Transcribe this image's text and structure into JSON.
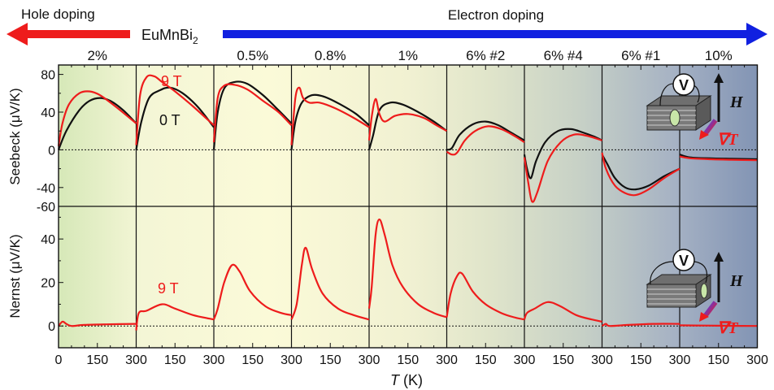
{
  "header": {
    "hole_label": "Hole doping",
    "electron_label": "Electron doping",
    "compound_base": "EuMnBi",
    "compound_sub": "2",
    "hole_color": "#ee1c1c",
    "electron_color": "#1020e0"
  },
  "chart_data": {
    "type": "line",
    "xlabel_italic": "T",
    "xlabel_unit": " (K)",
    "xlim": [
      0,
      300
    ],
    "x_ticks": [
      "0",
      "150",
      "300",
      "150",
      "300",
      "150",
      "300",
      "150",
      "300",
      "150",
      "300",
      "150",
      "300",
      "150",
      "300",
      "150",
      "300",
      "150",
      "300"
    ],
    "top_panel": {
      "ylabel": "Seebeck (μV/K)",
      "ylim": [
        -60,
        90
      ],
      "y_ticks": [
        "80",
        "40",
        "0",
        "-40",
        "-60"
      ]
    },
    "bottom_panel": {
      "ylabel": "Nernst (μV/K)",
      "ylim": [
        -10,
        55
      ],
      "y_ticks": [
        "40",
        "20",
        "0"
      ]
    },
    "annotations": {
      "nine_tesla_top": "9 T",
      "zero_tesla": "0 T",
      "nine_tesla_bottom": "9 T",
      "voltmeter": "V",
      "field": "H",
      "gradient": "∇T"
    },
    "series_colors": {
      "0 T": "#111111",
      "9 T": "#ee1c1c"
    },
    "panels": [
      {
        "label": "2%",
        "seebeck_0T": [
          [
            0,
            0
          ],
          [
            30,
            20
          ],
          [
            80,
            42
          ],
          [
            120,
            52
          ],
          [
            160,
            55
          ],
          [
            200,
            52
          ],
          [
            250,
            42
          ],
          [
            300,
            28
          ]
        ],
        "seebeck_9T": [
          [
            0,
            4
          ],
          [
            15,
            28
          ],
          [
            40,
            48
          ],
          [
            80,
            60
          ],
          [
            120,
            62
          ],
          [
            160,
            58
          ],
          [
            220,
            46
          ],
          [
            300,
            28
          ]
        ],
        "nernst_9T": [
          [
            0,
            0
          ],
          [
            15,
            2
          ],
          [
            30,
            1
          ],
          [
            50,
            0
          ],
          [
            100,
            0.5
          ],
          [
            200,
            0.8
          ],
          [
            300,
            1
          ]
        ]
      },
      {
        "label": "",
        "seebeck_0T": [
          [
            0,
            0
          ],
          [
            20,
            30
          ],
          [
            50,
            55
          ],
          [
            90,
            63
          ],
          [
            130,
            66
          ],
          [
            180,
            60
          ],
          [
            240,
            45
          ],
          [
            300,
            24
          ]
        ],
        "seebeck_9T": [
          [
            0,
            5
          ],
          [
            15,
            58
          ],
          [
            40,
            77
          ],
          [
            70,
            78
          ],
          [
            100,
            72
          ],
          [
            150,
            62
          ],
          [
            220,
            46
          ],
          [
            300,
            26
          ]
        ],
        "nernst_9T": [
          [
            0,
            -2
          ],
          [
            10,
            6
          ],
          [
            40,
            7
          ],
          [
            100,
            10
          ],
          [
            150,
            8
          ],
          [
            220,
            5
          ],
          [
            300,
            3
          ]
        ]
      },
      {
        "label": "0.5%",
        "seebeck_0T": [
          [
            0,
            0
          ],
          [
            15,
            40
          ],
          [
            40,
            65
          ],
          [
            80,
            72
          ],
          [
            130,
            70
          ],
          [
            190,
            58
          ],
          [
            250,
            42
          ],
          [
            300,
            28
          ]
        ],
        "seebeck_9T": [
          [
            0,
            8
          ],
          [
            15,
            55
          ],
          [
            40,
            68
          ],
          [
            80,
            69
          ],
          [
            130,
            64
          ],
          [
            190,
            52
          ],
          [
            250,
            40
          ],
          [
            300,
            26
          ]
        ],
        "nernst_9T": [
          [
            0,
            3
          ],
          [
            15,
            8
          ],
          [
            40,
            20
          ],
          [
            70,
            28
          ],
          [
            100,
            25
          ],
          [
            140,
            16
          ],
          [
            200,
            9
          ],
          [
            260,
            6
          ],
          [
            300,
            5
          ]
        ]
      },
      {
        "label": "0.8%",
        "seebeck_0T": [
          [
            0,
            0
          ],
          [
            15,
            30
          ],
          [
            40,
            50
          ],
          [
            80,
            58
          ],
          [
            130,
            56
          ],
          [
            190,
            48
          ],
          [
            250,
            38
          ],
          [
            300,
            26
          ]
        ],
        "seebeck_9T": [
          [
            0,
            5
          ],
          [
            15,
            55
          ],
          [
            30,
            66
          ],
          [
            45,
            55
          ],
          [
            70,
            50
          ],
          [
            110,
            50
          ],
          [
            170,
            44
          ],
          [
            240,
            34
          ],
          [
            300,
            24
          ]
        ],
        "nernst_9T": [
          [
            0,
            3
          ],
          [
            20,
            10
          ],
          [
            40,
            28
          ],
          [
            55,
            36
          ],
          [
            80,
            26
          ],
          [
            120,
            15
          ],
          [
            180,
            8
          ],
          [
            240,
            5
          ],
          [
            300,
            3
          ]
        ]
      },
      {
        "label": "1%",
        "seebeck_0T": [
          [
            0,
            0
          ],
          [
            15,
            15
          ],
          [
            40,
            42
          ],
          [
            80,
            50
          ],
          [
            130,
            48
          ],
          [
            190,
            40
          ],
          [
            250,
            30
          ],
          [
            300,
            20
          ]
        ],
        "seebeck_9T": [
          [
            0,
            10
          ],
          [
            10,
            35
          ],
          [
            25,
            54
          ],
          [
            40,
            38
          ],
          [
            60,
            30
          ],
          [
            100,
            36
          ],
          [
            150,
            38
          ],
          [
            210,
            34
          ],
          [
            260,
            26
          ],
          [
            300,
            20
          ]
        ],
        "nernst_9T": [
          [
            0,
            8
          ],
          [
            10,
            18
          ],
          [
            25,
            42
          ],
          [
            40,
            49
          ],
          [
            60,
            42
          ],
          [
            90,
            28
          ],
          [
            130,
            18
          ],
          [
            190,
            10
          ],
          [
            250,
            6
          ],
          [
            300,
            4
          ]
        ]
      },
      {
        "label": "6% #2",
        "seebeck_0T": [
          [
            0,
            0
          ],
          [
            20,
            2
          ],
          [
            50,
            16
          ],
          [
            100,
            27
          ],
          [
            150,
            30
          ],
          [
            200,
            26
          ],
          [
            250,
            18
          ],
          [
            300,
            10
          ]
        ],
        "seebeck_9T": [
          [
            0,
            -2
          ],
          [
            20,
            -5
          ],
          [
            40,
            -3
          ],
          [
            70,
            10
          ],
          [
            110,
            20
          ],
          [
            160,
            25
          ],
          [
            210,
            22
          ],
          [
            260,
            15
          ],
          [
            300,
            8
          ]
        ],
        "nernst_9T": [
          [
            0,
            4
          ],
          [
            15,
            15
          ],
          [
            40,
            23
          ],
          [
            60,
            24
          ],
          [
            100,
            16
          ],
          [
            150,
            10
          ],
          [
            210,
            6
          ],
          [
            260,
            4
          ],
          [
            300,
            3
          ]
        ]
      },
      {
        "label": "6% #4",
        "seebeck_0T": [
          [
            0,
            -5
          ],
          [
            10,
            -20
          ],
          [
            25,
            -30
          ],
          [
            45,
            -12
          ],
          [
            80,
            8
          ],
          [
            130,
            20
          ],
          [
            180,
            22
          ],
          [
            230,
            18
          ],
          [
            270,
            14
          ],
          [
            300,
            10
          ]
        ],
        "seebeck_9T": [
          [
            0,
            -8
          ],
          [
            15,
            -35
          ],
          [
            30,
            -55
          ],
          [
            50,
            -45
          ],
          [
            90,
            -12
          ],
          [
            140,
            8
          ],
          [
            190,
            16
          ],
          [
            240,
            15
          ],
          [
            300,
            10
          ]
        ],
        "nernst_9T": [
          [
            0,
            3
          ],
          [
            10,
            6
          ],
          [
            40,
            8
          ],
          [
            90,
            11
          ],
          [
            140,
            9
          ],
          [
            200,
            5
          ],
          [
            260,
            3
          ],
          [
            300,
            2
          ]
        ]
      },
      {
        "label": "6% #1",
        "seebeck_0T": [
          [
            0,
            -5
          ],
          [
            20,
            -15
          ],
          [
            50,
            -30
          ],
          [
            90,
            -40
          ],
          [
            130,
            -42
          ],
          [
            180,
            -38
          ],
          [
            240,
            -28
          ],
          [
            300,
            -20
          ]
        ],
        "seebeck_9T": [
          [
            0,
            -3
          ],
          [
            15,
            -20
          ],
          [
            50,
            -38
          ],
          [
            90,
            -46
          ],
          [
            130,
            -48
          ],
          [
            180,
            -42
          ],
          [
            240,
            -30
          ],
          [
            300,
            -20
          ]
        ],
        "nernst_9T": [
          [
            0,
            0
          ],
          [
            15,
            1
          ],
          [
            30,
            0
          ],
          [
            100,
            0.5
          ],
          [
            200,
            1
          ],
          [
            300,
            1
          ]
        ]
      },
      {
        "label": "10%",
        "seebeck_0T": [
          [
            0,
            -5
          ],
          [
            40,
            -8
          ],
          [
            120,
            -9
          ],
          [
            200,
            -9.5
          ],
          [
            300,
            -10
          ]
        ],
        "seebeck_9T": [
          [
            0,
            -7
          ],
          [
            40,
            -9
          ],
          [
            120,
            -10
          ],
          [
            200,
            -10.5
          ],
          [
            300,
            -11
          ]
        ],
        "nernst_9T": [
          [
            0,
            0.3
          ],
          [
            100,
            0.2
          ],
          [
            200,
            0.1
          ],
          [
            300,
            0
          ]
        ]
      }
    ]
  }
}
